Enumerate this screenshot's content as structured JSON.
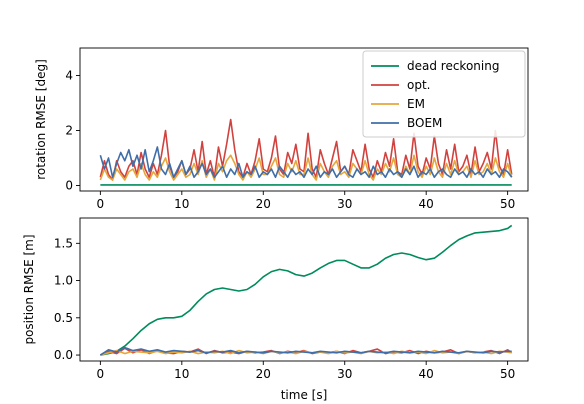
{
  "chart_data": [
    {
      "type": "line",
      "title": "",
      "xlabel": "",
      "ylabel": "rotation RMSE [deg]",
      "xlim": [
        -2.5,
        52.5
      ],
      "ylim": [
        -0.2,
        5.0
      ],
      "xticks": [
        0,
        10,
        20,
        30,
        40,
        50
      ],
      "yticks": [
        0,
        2,
        4
      ],
      "legend_position": "top-right",
      "grid": false,
      "series": [
        {
          "name": "dead reckoning",
          "color": "#008c5a",
          "x": [
            0,
            50.5
          ],
          "y": [
            0.02,
            0.02
          ]
        },
        {
          "name": "opt.",
          "color": "#d1423f",
          "x": [
            0,
            0.5,
            1,
            1.5,
            2,
            2.5,
            3,
            3.5,
            4,
            4.5,
            5,
            5.5,
            6,
            6.5,
            7,
            7.5,
            8,
            8.5,
            9,
            9.5,
            10,
            10.5,
            11,
            11.5,
            12,
            12.5,
            13,
            13.5,
            14,
            14.5,
            15,
            15.5,
            16,
            16.5,
            17,
            17.5,
            18,
            18.5,
            19,
            19.5,
            20,
            20.5,
            21,
            21.5,
            22,
            22.5,
            23,
            23.5,
            24,
            24.5,
            25,
            25.5,
            26,
            26.5,
            27,
            27.5,
            28,
            28.5,
            29,
            29.5,
            30,
            30.5,
            31,
            31.5,
            32,
            32.5,
            33,
            33.5,
            34,
            34.5,
            35,
            35.5,
            36,
            36.5,
            37,
            37.5,
            38,
            38.5,
            39,
            39.5,
            40,
            40.5,
            41,
            41.5,
            42,
            42.5,
            43,
            43.5,
            44,
            44.5,
            45,
            45.5,
            46,
            46.5,
            47,
            47.5,
            48,
            48.5,
            49,
            49.5,
            50,
            50.5
          ],
          "y": [
            0.3,
            0.9,
            0.4,
            0.2,
            0.9,
            0.5,
            0.3,
            0.7,
            0.9,
            0.4,
            1.2,
            0.6,
            0.3,
            0.8,
            0.4,
            1.1,
            2.0,
            0.7,
            0.3,
            0.5,
            0.9,
            0.4,
            0.6,
            1.3,
            0.5,
            1.6,
            0.4,
            0.9,
            0.3,
            1.4,
            0.7,
            1.5,
            2.4,
            1.3,
            0.5,
            0.3,
            0.8,
            0.4,
            0.9,
            1.7,
            0.6,
            0.5,
            1.0,
            1.8,
            0.6,
            0.4,
            1.2,
            0.8,
            1.5,
            0.6,
            0.5,
            1.9,
            0.6,
            0.3,
            1.3,
            0.8,
            0.4,
            1.0,
            1.6,
            0.5,
            0.7,
            0.4,
            1.3,
            0.9,
            0.5,
            1.5,
            0.6,
            0.3,
            0.9,
            0.5,
            1.2,
            0.7,
            1.7,
            0.5,
            0.4,
            1.1,
            0.6,
            1.9,
            0.7,
            0.4,
            1.0,
            0.6,
            1.8,
            0.8,
            0.4,
            1.3,
            0.6,
            1.5,
            0.5,
            0.7,
            1.1,
            0.4,
            1.4,
            0.5,
            0.8,
            1.2,
            0.6,
            2.0,
            0.7,
            0.4,
            1.3,
            0.4
          ]
        },
        {
          "name": "EM",
          "color": "#e5a73b",
          "x": [
            0,
            0.5,
            1,
            1.5,
            2,
            2.5,
            3,
            3.5,
            4,
            4.5,
            5,
            5.5,
            6,
            6.5,
            7,
            7.5,
            8,
            8.5,
            9,
            9.5,
            10,
            10.5,
            11,
            11.5,
            12,
            12.5,
            13,
            13.5,
            14,
            14.5,
            15,
            15.5,
            16,
            16.5,
            17,
            17.5,
            18,
            18.5,
            19,
            19.5,
            20,
            20.5,
            21,
            21.5,
            22,
            22.5,
            23,
            23.5,
            24,
            24.5,
            25,
            25.5,
            26,
            26.5,
            27,
            27.5,
            28,
            28.5,
            29,
            29.5,
            30,
            30.5,
            31,
            31.5,
            32,
            32.5,
            33,
            33.5,
            34,
            34.5,
            35,
            35.5,
            36,
            36.5,
            37,
            37.5,
            38,
            38.5,
            39,
            39.5,
            40,
            40.5,
            41,
            41.5,
            42,
            42.5,
            43,
            43.5,
            44,
            44.5,
            45,
            45.5,
            46,
            46.5,
            47,
            47.5,
            48,
            48.5,
            49,
            49.5,
            50,
            50.5
          ],
          "y": [
            0.2,
            0.6,
            0.3,
            0.2,
            0.6,
            0.4,
            0.2,
            0.5,
            0.6,
            0.3,
            0.8,
            0.4,
            0.2,
            0.5,
            0.3,
            0.7,
            1.0,
            0.5,
            0.2,
            0.4,
            0.6,
            0.3,
            0.4,
            0.8,
            0.4,
            0.9,
            0.3,
            0.6,
            0.2,
            0.8,
            0.5,
            0.9,
            1.1,
            0.8,
            0.4,
            0.2,
            0.5,
            0.3,
            0.6,
            1.0,
            0.4,
            0.4,
            0.7,
            1.0,
            0.4,
            0.3,
            0.8,
            0.5,
            0.9,
            0.4,
            0.4,
            1.0,
            0.4,
            0.2,
            0.8,
            0.5,
            0.3,
            0.7,
            0.9,
            0.4,
            0.5,
            0.3,
            0.8,
            0.6,
            0.4,
            0.9,
            0.4,
            0.2,
            0.6,
            0.4,
            0.8,
            0.5,
            1.0,
            0.4,
            0.3,
            0.7,
            0.4,
            1.1,
            0.5,
            0.3,
            0.7,
            0.4,
            1.0,
            0.5,
            0.3,
            0.8,
            0.4,
            0.9,
            0.4,
            0.5,
            0.7,
            0.3,
            0.9,
            0.4,
            0.5,
            0.8,
            0.4,
            1.0,
            0.5,
            0.3,
            0.8,
            0.3
          ]
        },
        {
          "name": "BOEM",
          "color": "#3f6ea8",
          "x": [
            0,
            0.5,
            1,
            1.5,
            2,
            2.5,
            3,
            3.5,
            4,
            4.5,
            5,
            5.5,
            6,
            6.5,
            7,
            7.5,
            8,
            8.5,
            9,
            9.5,
            10,
            10.5,
            11,
            11.5,
            12,
            12.5,
            13,
            13.5,
            14,
            14.5,
            15,
            15.5,
            16,
            16.5,
            17,
            17.5,
            18,
            18.5,
            19,
            19.5,
            20,
            20.5,
            21,
            21.5,
            22,
            22.5,
            23,
            23.5,
            24,
            24.5,
            25,
            25.5,
            26,
            26.5,
            27,
            27.5,
            28,
            28.5,
            29,
            29.5,
            30,
            30.5,
            31,
            31.5,
            32,
            32.5,
            33,
            33.5,
            34,
            34.5,
            35,
            35.5,
            36,
            36.5,
            37,
            37.5,
            38,
            38.5,
            39,
            39.5,
            40,
            40.5,
            41,
            41.5,
            42,
            42.5,
            43,
            43.5,
            44,
            44.5,
            45,
            45.5,
            46,
            46.5,
            47,
            47.5,
            48,
            48.5,
            49,
            49.5,
            50,
            50.5
          ],
          "y": [
            1.1,
            0.6,
            1.0,
            0.3,
            0.8,
            1.2,
            0.9,
            1.3,
            0.7,
            1.1,
            0.6,
            1.3,
            0.5,
            0.9,
            1.4,
            0.6,
            0.4,
            0.8,
            0.3,
            0.6,
            0.9,
            0.4,
            0.7,
            0.3,
            0.5,
            0.8,
            0.4,
            0.6,
            0.3,
            0.5,
            0.7,
            0.3,
            0.6,
            0.4,
            0.8,
            0.3,
            0.5,
            0.4,
            0.7,
            0.3,
            0.5,
            0.4,
            0.6,
            0.3,
            0.7,
            0.5,
            0.3,
            0.6,
            0.4,
            0.5,
            0.3,
            0.6,
            0.4,
            0.7,
            0.3,
            0.5,
            0.4,
            0.6,
            0.3,
            0.5,
            0.7,
            0.4,
            0.3,
            0.6,
            0.4,
            0.5,
            0.3,
            0.7,
            0.4,
            0.5,
            0.3,
            0.6,
            0.4,
            0.5,
            0.3,
            0.6,
            0.4,
            0.7,
            0.3,
            0.5,
            0.4,
            0.6,
            0.3,
            0.5,
            0.6,
            0.4,
            0.3,
            0.6,
            0.4,
            0.5,
            0.3,
            0.6,
            0.4,
            0.5,
            0.3,
            0.6,
            0.4,
            0.5,
            0.3,
            0.6,
            0.5,
            0.3
          ]
        }
      ]
    },
    {
      "type": "line",
      "title": "",
      "xlabel": "time [s]",
      "ylabel": "position RMSE [m]",
      "xlim": [
        -2.5,
        52.5
      ],
      "ylim": [
        -0.08,
        1.84
      ],
      "xticks": [
        0,
        10,
        20,
        30,
        40,
        50
      ],
      "yticks": [
        0.0,
        0.5,
        1.0,
        1.5
      ],
      "grid": false,
      "series": [
        {
          "name": "dead reckoning",
          "color": "#008c5a",
          "x": [
            0,
            1,
            2,
            3,
            4,
            5,
            6,
            7,
            8,
            9,
            10,
            11,
            12,
            13,
            14,
            15,
            16,
            17,
            18,
            19,
            20,
            21,
            22,
            23,
            24,
            25,
            26,
            27,
            28,
            29,
            30,
            31,
            32,
            33,
            34,
            35,
            36,
            37,
            38,
            39,
            40,
            41,
            42,
            43,
            44,
            45,
            46,
            47,
            48,
            49,
            50,
            50.5
          ],
          "y": [
            0.0,
            0.02,
            0.05,
            0.12,
            0.22,
            0.33,
            0.42,
            0.48,
            0.5,
            0.5,
            0.52,
            0.6,
            0.72,
            0.82,
            0.88,
            0.9,
            0.88,
            0.86,
            0.88,
            0.95,
            1.05,
            1.12,
            1.15,
            1.13,
            1.08,
            1.06,
            1.1,
            1.17,
            1.23,
            1.27,
            1.27,
            1.22,
            1.17,
            1.17,
            1.22,
            1.3,
            1.35,
            1.37,
            1.35,
            1.31,
            1.28,
            1.3,
            1.38,
            1.47,
            1.55,
            1.6,
            1.64,
            1.65,
            1.66,
            1.67,
            1.7,
            1.74
          ]
        },
        {
          "name": "opt.",
          "color": "#d1423f",
          "x": [
            0,
            1,
            2,
            3,
            4,
            5,
            6,
            7,
            8,
            9,
            10,
            11,
            12,
            13,
            14,
            15,
            16,
            17,
            18,
            19,
            20,
            21,
            22,
            23,
            24,
            25,
            26,
            27,
            28,
            29,
            30,
            31,
            32,
            33,
            34,
            35,
            36,
            37,
            38,
            39,
            40,
            41,
            42,
            43,
            44,
            45,
            46,
            47,
            48,
            49,
            50,
            50.5
          ],
          "y": [
            0.0,
            0.05,
            0.02,
            0.09,
            0.03,
            0.07,
            0.02,
            0.06,
            0.03,
            0.02,
            0.05,
            0.04,
            0.08,
            0.02,
            0.06,
            0.03,
            0.04,
            0.02,
            0.05,
            0.03,
            0.04,
            0.06,
            0.02,
            0.05,
            0.03,
            0.06,
            0.02,
            0.04,
            0.03,
            0.05,
            0.02,
            0.06,
            0.03,
            0.05,
            0.08,
            0.02,
            0.04,
            0.03,
            0.06,
            0.02,
            0.05,
            0.03,
            0.04,
            0.07,
            0.02,
            0.05,
            0.03,
            0.04,
            0.06,
            0.02,
            0.07,
            0.03
          ]
        },
        {
          "name": "EM",
          "color": "#e5a73b",
          "x": [
            0,
            1,
            2,
            3,
            4,
            5,
            6,
            7,
            8,
            9,
            10,
            11,
            12,
            13,
            14,
            15,
            16,
            17,
            18,
            19,
            20,
            21,
            22,
            23,
            24,
            25,
            26,
            27,
            28,
            29,
            30,
            31,
            32,
            33,
            34,
            35,
            36,
            37,
            38,
            39,
            40,
            41,
            42,
            43,
            44,
            45,
            46,
            47,
            48,
            49,
            50,
            50.5
          ],
          "y": [
            0.0,
            0.03,
            0.06,
            0.02,
            0.05,
            0.04,
            0.03,
            0.05,
            0.02,
            0.04,
            0.03,
            0.05,
            0.02,
            0.04,
            0.03,
            0.05,
            0.02,
            0.06,
            0.03,
            0.04,
            0.02,
            0.05,
            0.03,
            0.04,
            0.02,
            0.05,
            0.03,
            0.04,
            0.02,
            0.05,
            0.03,
            0.04,
            0.02,
            0.05,
            0.03,
            0.04,
            0.02,
            0.05,
            0.03,
            0.04,
            0.02,
            0.06,
            0.03,
            0.04,
            0.02,
            0.05,
            0.03,
            0.04,
            0.02,
            0.05,
            0.04,
            0.03
          ]
        },
        {
          "name": "BOEM",
          "color": "#3f6ea8",
          "x": [
            0,
            1,
            2,
            3,
            4,
            5,
            6,
            7,
            8,
            9,
            10,
            11,
            12,
            13,
            14,
            15,
            16,
            17,
            18,
            19,
            20,
            21,
            22,
            23,
            24,
            25,
            26,
            27,
            28,
            29,
            30,
            31,
            32,
            33,
            34,
            35,
            36,
            37,
            38,
            39,
            40,
            41,
            42,
            43,
            44,
            45,
            46,
            47,
            48,
            49,
            50,
            50.5
          ],
          "y": [
            0.0,
            0.07,
            0.04,
            0.1,
            0.06,
            0.08,
            0.05,
            0.07,
            0.04,
            0.06,
            0.05,
            0.04,
            0.06,
            0.03,
            0.05,
            0.04,
            0.06,
            0.03,
            0.05,
            0.04,
            0.03,
            0.05,
            0.04,
            0.03,
            0.05,
            0.04,
            0.03,
            0.05,
            0.04,
            0.03,
            0.05,
            0.04,
            0.03,
            0.05,
            0.04,
            0.03,
            0.05,
            0.04,
            0.03,
            0.05,
            0.04,
            0.03,
            0.05,
            0.04,
            0.03,
            0.05,
            0.04,
            0.03,
            0.05,
            0.04,
            0.05,
            0.05
          ]
        }
      ]
    }
  ]
}
